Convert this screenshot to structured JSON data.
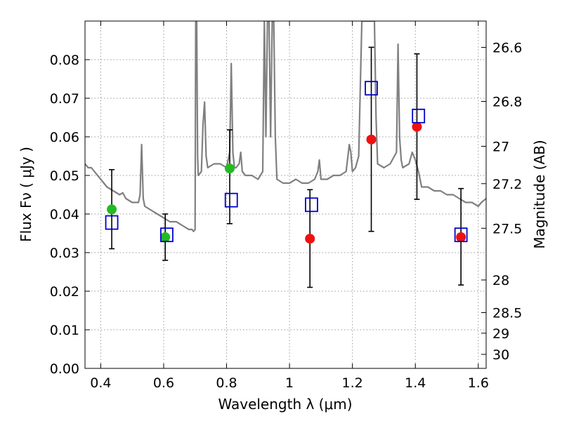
{
  "chart_data": {
    "type": "scatter",
    "xlabel": "Wavelength  λ (μm)",
    "ylabel": "Flux  Fν  ( μJy )",
    "ylabel_right": "Magnitude (AB)",
    "xlim": [
      0.35,
      1.625
    ],
    "ylim": [
      0.0,
      0.09
    ],
    "grid": true,
    "x_ticks": [
      {
        "value": 0.4,
        "label": "0.4"
      },
      {
        "value": 0.6,
        "label": "0.6"
      },
      {
        "value": 0.8,
        "label": "0.8"
      },
      {
        "value": 1.0,
        "label": "1"
      },
      {
        "value": 1.2,
        "label": "1.2"
      },
      {
        "value": 1.4,
        "label": "1.4"
      },
      {
        "value": 1.6,
        "label": "1.6"
      }
    ],
    "y_ticks": [
      {
        "value": 0.0,
        "label": "0.00"
      },
      {
        "value": 0.01,
        "label": "0.01"
      },
      {
        "value": 0.02,
        "label": "0.02"
      },
      {
        "value": 0.03,
        "label": "0.03"
      },
      {
        "value": 0.04,
        "label": "0.04"
      },
      {
        "value": 0.05,
        "label": "0.05"
      },
      {
        "value": 0.06,
        "label": "0.06"
      },
      {
        "value": 0.07,
        "label": "0.07"
      },
      {
        "value": 0.08,
        "label": "0.08"
      }
    ],
    "y2_ticks": [
      {
        "value": 26.6,
        "label": "26.6"
      },
      {
        "value": 26.8,
        "label": "26.8"
      },
      {
        "value": 27.0,
        "label": "27"
      },
      {
        "value": 27.2,
        "label": "27.2"
      },
      {
        "value": 27.5,
        "label": "27.5"
      },
      {
        "value": 28.0,
        "label": "28"
      },
      {
        "value": 28.5,
        "label": "28.5"
      },
      {
        "value": 29.0,
        "label": "29"
      },
      {
        "value": 30.0,
        "label": "30"
      }
    ],
    "colors": {
      "spectrum": "#808080",
      "observed_green": "#22bb22",
      "observed_red": "#ee1111",
      "model": "#0000cc",
      "errorbar": "#000000",
      "grid": "#999999"
    },
    "series": [
      {
        "type": "line",
        "color": "#808080",
        "x": [
          0.35,
          0.36,
          0.37,
          0.38,
          0.39,
          0.4,
          0.42,
          0.44,
          0.46,
          0.47,
          0.48,
          0.5,
          0.52,
          0.525,
          0.53,
          0.535,
          0.54,
          0.56,
          0.58,
          0.6,
          0.62,
          0.64,
          0.66,
          0.68,
          0.69,
          0.695,
          0.7,
          0.702,
          0.705,
          0.708,
          0.71,
          0.72,
          0.725,
          0.73,
          0.735,
          0.74,
          0.76,
          0.78,
          0.8,
          0.81,
          0.815,
          0.82,
          0.825,
          0.83,
          0.84,
          0.845,
          0.85,
          0.86,
          0.88,
          0.9,
          0.915,
          0.92,
          0.925,
          0.93,
          0.935,
          0.94,
          0.945,
          0.95,
          0.955,
          0.96,
          0.98,
          1.0,
          1.02,
          1.04,
          1.06,
          1.08,
          1.09,
          1.095,
          1.1,
          1.12,
          1.14,
          1.16,
          1.18,
          1.19,
          1.195,
          1.2,
          1.21,
          1.22,
          1.23,
          1.235,
          1.24,
          1.245,
          1.25,
          1.26,
          1.27,
          1.275,
          1.28,
          1.3,
          1.32,
          1.34,
          1.345,
          1.35,
          1.355,
          1.36,
          1.38,
          1.39,
          1.4,
          1.41,
          1.42,
          1.44,
          1.46,
          1.48,
          1.5,
          1.52,
          1.54,
          1.56,
          1.58,
          1.6,
          1.61,
          1.625
        ],
        "y": [
          0.053,
          0.052,
          0.052,
          0.051,
          0.05,
          0.049,
          0.047,
          0.046,
          0.045,
          0.0455,
          0.044,
          0.043,
          0.043,
          0.045,
          0.058,
          0.044,
          0.042,
          0.041,
          0.04,
          0.039,
          0.038,
          0.038,
          0.037,
          0.036,
          0.036,
          0.0355,
          0.036,
          0.09,
          0.09,
          0.055,
          0.05,
          0.051,
          0.063,
          0.069,
          0.055,
          0.052,
          0.053,
          0.053,
          0.052,
          0.056,
          0.079,
          0.056,
          0.052,
          0.052,
          0.053,
          0.056,
          0.051,
          0.05,
          0.05,
          0.049,
          0.051,
          0.09,
          0.06,
          0.09,
          0.09,
          0.06,
          0.09,
          0.09,
          0.06,
          0.049,
          0.048,
          0.048,
          0.049,
          0.048,
          0.048,
          0.049,
          0.051,
          0.054,
          0.049,
          0.049,
          0.05,
          0.05,
          0.051,
          0.058,
          0.056,
          0.051,
          0.052,
          0.055,
          0.09,
          0.09,
          0.09,
          0.09,
          0.09,
          0.09,
          0.09,
          0.065,
          0.053,
          0.052,
          0.053,
          0.056,
          0.084,
          0.06,
          0.054,
          0.052,
          0.053,
          0.056,
          0.054,
          0.051,
          0.047,
          0.047,
          0.046,
          0.046,
          0.045,
          0.045,
          0.044,
          0.043,
          0.043,
          0.042,
          0.043,
          0.044
        ]
      },
      {
        "type": "errorbar",
        "color": "#000000",
        "x": [
          0.435,
          0.605,
          0.81,
          1.065,
          1.26,
          1.405,
          1.545
        ],
        "y": [
          0.0412,
          0.034,
          0.0518,
          0.0336,
          0.0593,
          0.0626,
          0.034
        ],
        "yerr_low": [
          0.031,
          0.028,
          0.0375,
          0.021,
          0.0355,
          0.0438,
          0.0216
        ],
        "yerr_high": [
          0.0515,
          0.04,
          0.0618,
          0.0463,
          0.0832,
          0.0815,
          0.0466
        ]
      },
      {
        "type": "scatter",
        "marker": "circle",
        "color": "#22bb22",
        "x": [
          0.435,
          0.605,
          0.81
        ],
        "y": [
          0.0412,
          0.034,
          0.0518
        ]
      },
      {
        "type": "scatter",
        "marker": "circle",
        "color": "#ee1111",
        "x": [
          1.065,
          1.26,
          1.405,
          1.545
        ],
        "y": [
          0.0336,
          0.0593,
          0.0626,
          0.034
        ]
      },
      {
        "type": "scatter",
        "marker": "open-square",
        "color": "#0000cc",
        "x": [
          0.435,
          0.61,
          0.815,
          1.07,
          1.26,
          1.41,
          1.545
        ],
        "y": [
          0.0378,
          0.0346,
          0.0436,
          0.0424,
          0.0726,
          0.0654,
          0.0346
        ]
      }
    ]
  }
}
